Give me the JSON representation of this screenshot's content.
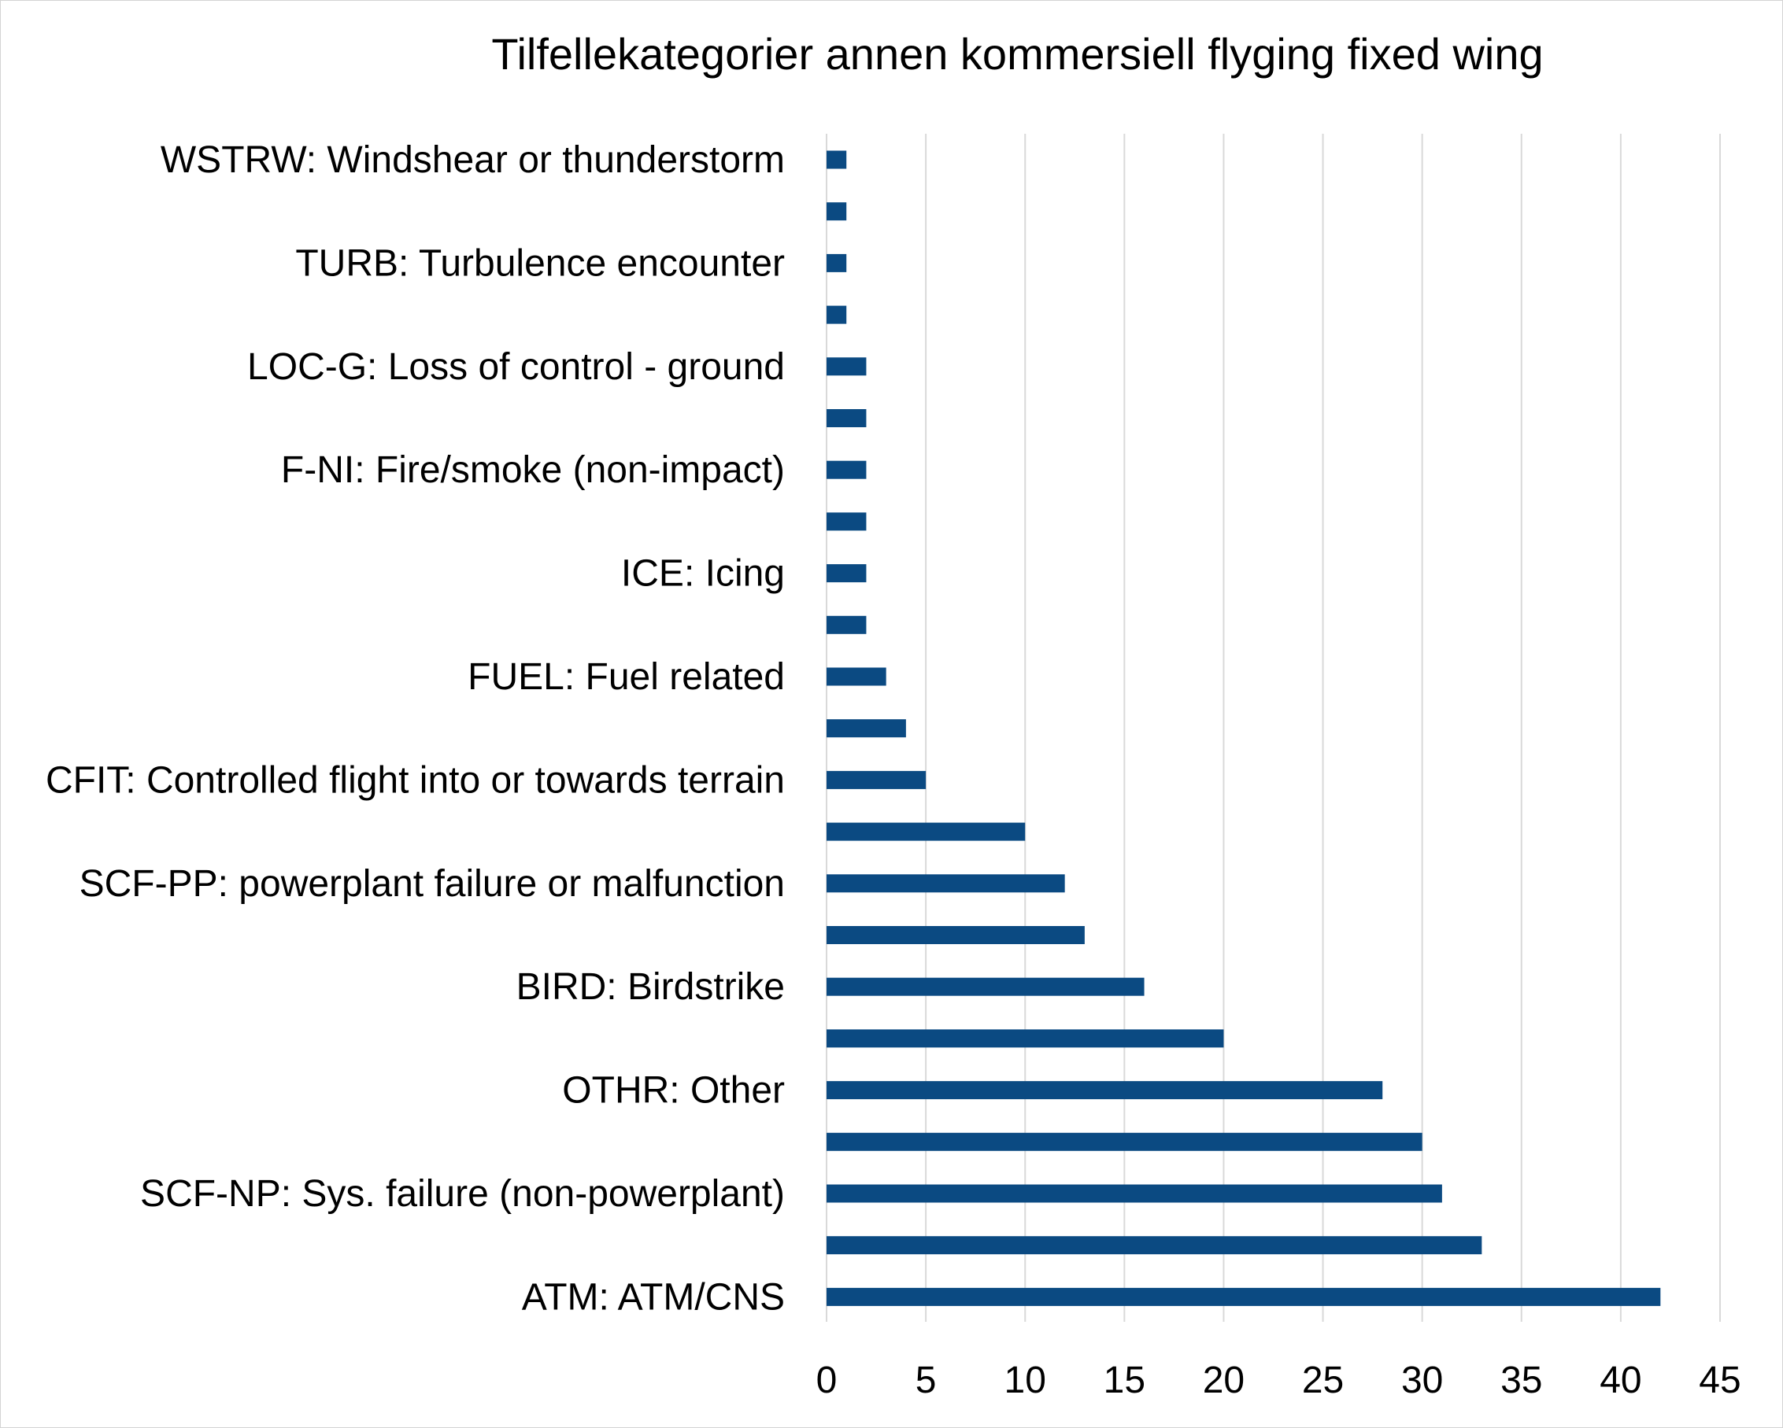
{
  "chart_data": {
    "type": "bar",
    "orientation": "horizontal",
    "title": "Tilfellekategorier annen kommersiell flyging fixed wing",
    "xlabel": "",
    "ylabel": "",
    "xlim": [
      0,
      45
    ],
    "xticks": [
      "0",
      "5",
      "10",
      "15",
      "20",
      "25",
      "30",
      "35",
      "40",
      "45"
    ],
    "grid": true,
    "legend": "none",
    "bar_color": "#0b4a82",
    "grid_color": "#d9d9d9",
    "categories": [
      "WSTRW: Windshear or thunderstorm",
      "",
      "TURB: Turbulence encounter",
      "",
      "LOC-G: Loss of control - ground",
      "",
      "F-NI: Fire/smoke (non-impact)",
      "",
      "ICE: Icing",
      "",
      "FUEL: Fuel related",
      "",
      "CFIT: Controlled flight into or towards terrain",
      "",
      "SCF-PP: powerplant failure or malfunction",
      "",
      "BIRD: Birdstrike",
      "",
      "OTHR: Other",
      "",
      "SCF-NP: Sys. failure (non-powerplant)",
      "",
      "ATM: ATM/CNS"
    ],
    "values": [
      1,
      1,
      1,
      1,
      2,
      2,
      2,
      2,
      2,
      2,
      3,
      4,
      5,
      10,
      12,
      13,
      16,
      20,
      28,
      30,
      31,
      33,
      42
    ]
  }
}
